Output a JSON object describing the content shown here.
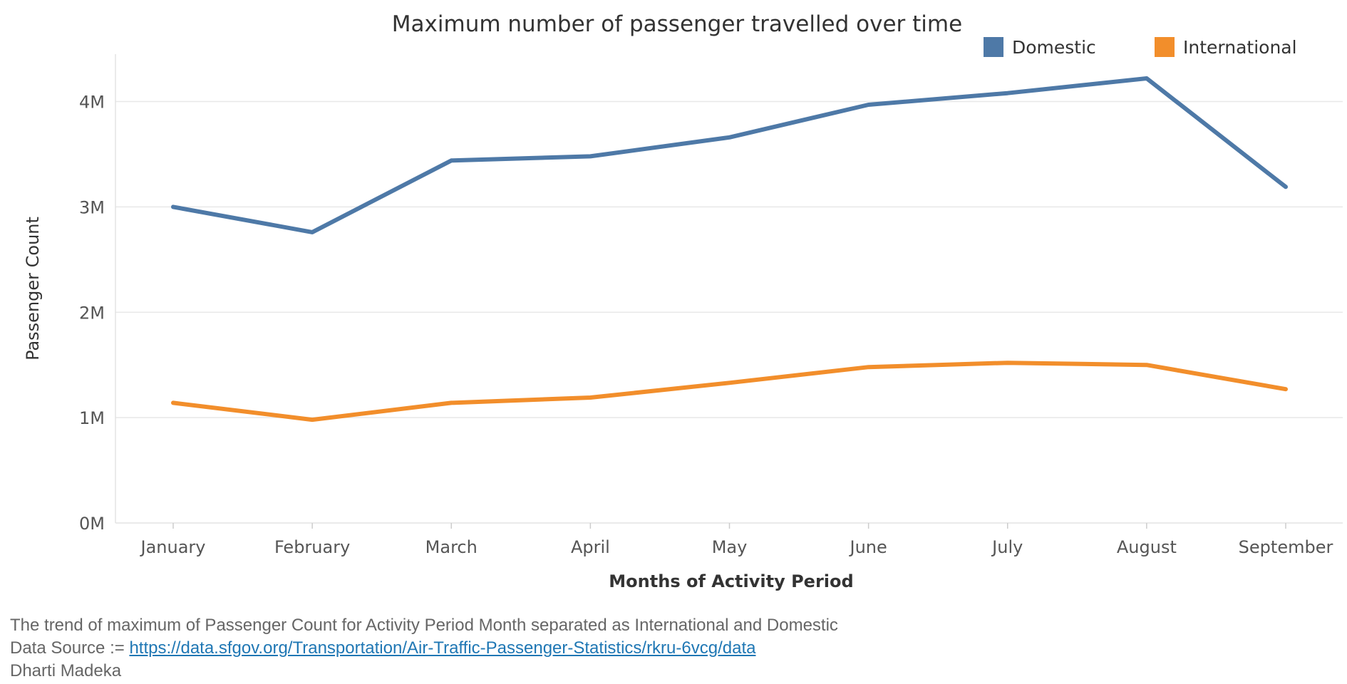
{
  "chart_data": {
    "type": "line",
    "title": "Maximum number of passenger travelled over time",
    "xlabel": "Months of Activity Period",
    "ylabel": "Passenger Count",
    "categories": [
      "January",
      "February",
      "March",
      "April",
      "May",
      "June",
      "July",
      "August",
      "September"
    ],
    "y_ticks": [
      0,
      1000000,
      2000000,
      3000000,
      4000000
    ],
    "y_tick_labels": [
      "0M",
      "1M",
      "2M",
      "3M",
      "4M"
    ],
    "ylim": [
      0,
      4450000
    ],
    "grid": true,
    "legend_position": "top-right",
    "series": [
      {
        "name": "Domestic",
        "color": "#4e79a7",
        "values": [
          3000000,
          2760000,
          3440000,
          3480000,
          3660000,
          3970000,
          4080000,
          4220000,
          3190000
        ]
      },
      {
        "name": "International",
        "color": "#f28e2b",
        "values": [
          1140000,
          980000,
          1140000,
          1190000,
          1330000,
          1480000,
          1520000,
          1500000,
          1270000
        ]
      }
    ]
  },
  "footer": {
    "caption": "The trend of maximum of Passenger Count for Activity Period Month separated as International and Domestic",
    "source_prefix": "Data Source := ",
    "source_link": "https://data.sfgov.org/Transportation/Air-Traffic-Passenger-Statistics/rkru-6vcg/data",
    "author": "Dharti Madeka"
  }
}
